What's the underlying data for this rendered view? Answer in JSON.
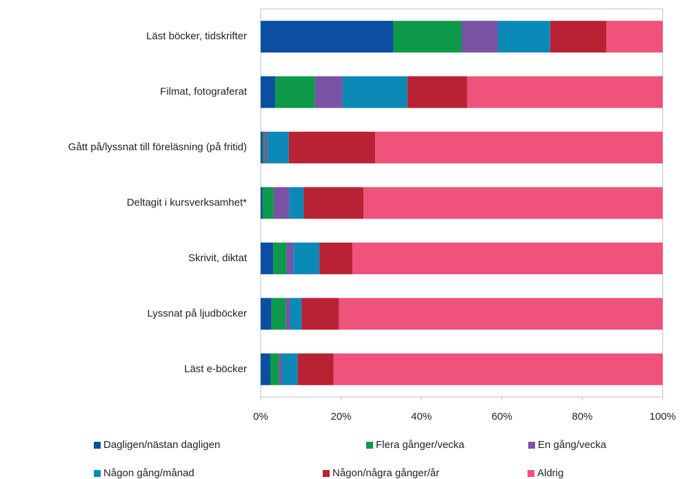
{
  "chart_data": {
    "type": "stacked_bar_horizontal",
    "categories": [
      "Läst böcker, tidskrifter",
      "Filmat, fotograferat",
      "Gått på/lyssnat till föreläsning (på fritid)",
      "Deltagit i kursverksamhet*",
      "Skrivit, diktat",
      "Lyssnat på ljudböcker",
      "Läst e-böcker"
    ],
    "series": [
      {
        "name": "Dagligen/nästan dagligen",
        "color": "#0c4ea2",
        "values": [
          33,
          3.6,
          0.5,
          0.5,
          3.1,
          2.7,
          2.4
        ]
      },
      {
        "name": "Flera gånger/vecka",
        "color": "#0e9a4a",
        "values": [
          17,
          9.9,
          0.5,
          2.7,
          3.3,
          3.6,
          2.2
        ]
      },
      {
        "name": "En gång/vecka",
        "color": "#7a52a6",
        "values": [
          9,
          6.9,
          0.7,
          3.9,
          1.7,
          1.0,
          0.7
        ]
      },
      {
        "name": "Någon gång/månad",
        "color": "#0b8ab8",
        "values": [
          13,
          16.1,
          5.3,
          3.6,
          6.5,
          2.9,
          3.9
        ]
      },
      {
        "name": "Någon/några gånger/år",
        "color": "#b82234",
        "values": [
          14,
          14.9,
          21.5,
          14.9,
          8.2,
          9.3,
          8.9
        ]
      },
      {
        "name": "Aldrig",
        "color": "#ef527a",
        "values": [
          14,
          48.6,
          71.5,
          74.4,
          77.2,
          80.5,
          81.9
        ]
      }
    ],
    "xlim": [
      0,
      100
    ],
    "xticks": [
      {
        "value": 0,
        "label": "0%"
      },
      {
        "value": 20,
        "label": "20%"
      },
      {
        "value": 40,
        "label": "40%"
      },
      {
        "value": 60,
        "label": "60%"
      },
      {
        "value": 80,
        "label": "80%"
      },
      {
        "value": 100,
        "label": "100%"
      }
    ],
    "grid": false,
    "legend": "bottom"
  }
}
